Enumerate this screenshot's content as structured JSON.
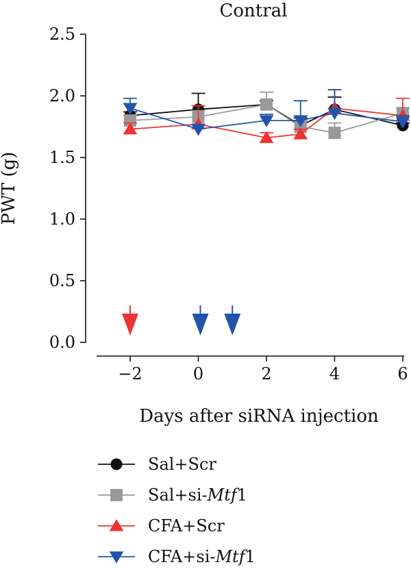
{
  "chart_data": {
    "type": "line",
    "title": "Contral",
    "xlabel": "Days after siRNA injection",
    "ylabel": "PWT (g)",
    "xlim": [
      -3,
      6
    ],
    "ylim": [
      0,
      2.5
    ],
    "x_ticks": [
      -2,
      0,
      2,
      4,
      6
    ],
    "x_tick_labels": [
      "−2",
      "0",
      "2",
      "4",
      "6"
    ],
    "y_ticks": [
      0,
      0.5,
      1.0,
      1.5,
      2.0,
      2.5
    ],
    "y_tick_labels": [
      "0.0",
      "0.5",
      "1.0",
      "1.5",
      "2.0",
      "2.5"
    ],
    "grid": false,
    "legend_position": "bottom-left",
    "x": [
      -2,
      0,
      2,
      3,
      4,
      6
    ],
    "series": [
      {
        "name": "Sal+Scr",
        "name_parts": [
          {
            "text": "Sal+Scr",
            "italic": false
          }
        ],
        "marker": "circle",
        "color": "#111111",
        "values": [
          1.84,
          1.89,
          1.93,
          1.76,
          1.89,
          1.76
        ],
        "errors": [
          0.03,
          0.13,
          0.03,
          0.06,
          0.1,
          0.02
        ]
      },
      {
        "name": "Sal+si-Mtf1",
        "name_parts": [
          {
            "text": "Sal+si-",
            "italic": false
          },
          {
            "text": "Mtf",
            "italic": true
          },
          {
            "text": "1",
            "italic": false
          }
        ],
        "marker": "square",
        "color": "#999999",
        "values": [
          1.8,
          1.83,
          1.93,
          1.75,
          1.7,
          1.86
        ],
        "errors": [
          0.04,
          0.05,
          0.1,
          0.05,
          0.08,
          0.04
        ]
      },
      {
        "name": "CFA+Scr",
        "name_parts": [
          {
            "text": "CFA+Scr",
            "italic": false
          }
        ],
        "marker": "triangle-up",
        "color": "#ee3333",
        "values": [
          1.73,
          1.77,
          1.66,
          1.69,
          1.9,
          1.84
        ],
        "errors": [
          0.05,
          0.15,
          0.04,
          0.04,
          0.15,
          0.14
        ]
      },
      {
        "name": "CFA+si-Mtf1",
        "name_parts": [
          {
            "text": "CFA+si-",
            "italic": false
          },
          {
            "text": "Mtf",
            "italic": true
          },
          {
            "text": "1",
            "italic": false
          }
        ],
        "marker": "triangle-down",
        "color": "#2255aa",
        "values": [
          1.9,
          1.73,
          1.8,
          1.8,
          1.86,
          1.79
        ],
        "errors": [
          0.08,
          0.04,
          0.05,
          0.16,
          0.19,
          0.05
        ]
      }
    ],
    "injection_arrows": [
      {
        "x": -2,
        "color": "#ee3333"
      },
      {
        "x": 0,
        "color": "#2255aa"
      },
      {
        "x": 1,
        "color": "#2255aa"
      }
    ]
  }
}
